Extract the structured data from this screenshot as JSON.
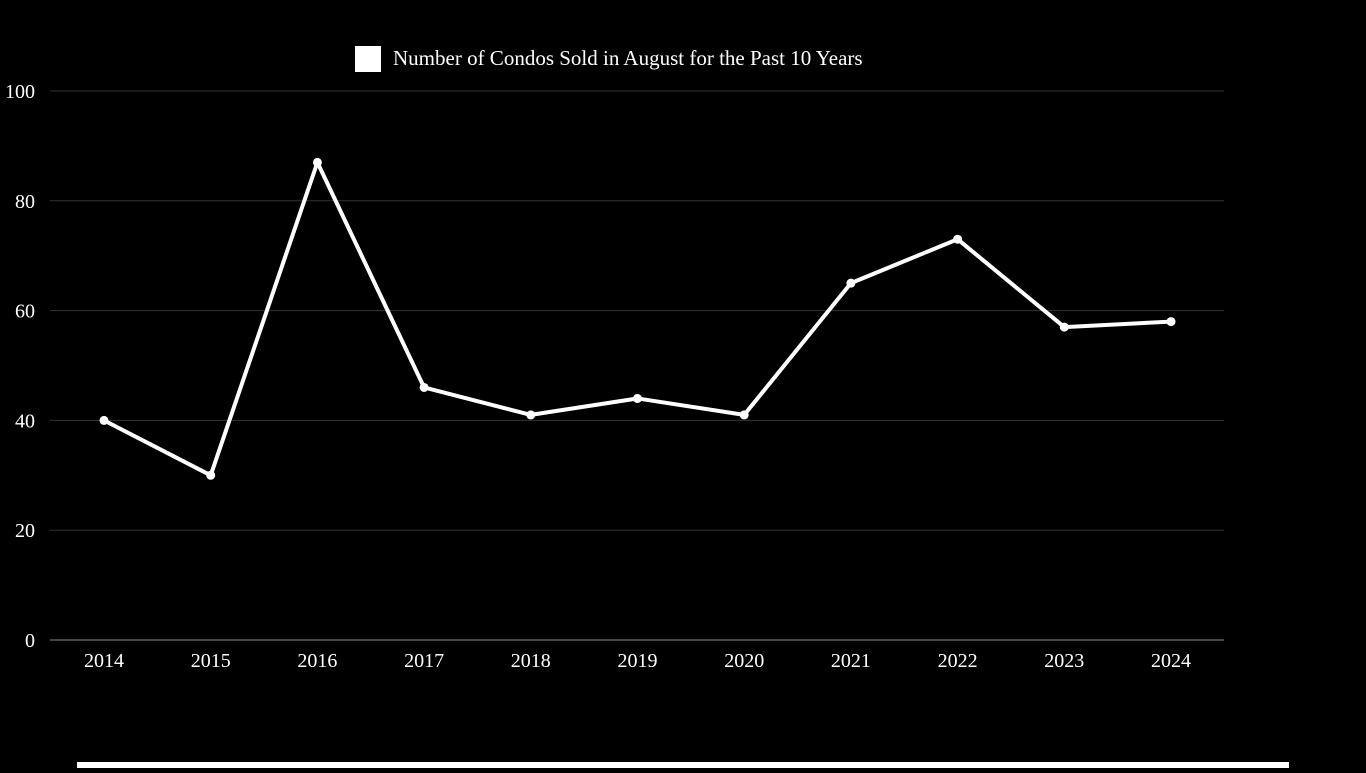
{
  "colors": {
    "background": "#000000",
    "series": "#ffffff",
    "gridline": "#333333",
    "axis": "#888888",
    "text": "#ffffff"
  },
  "chart_data": {
    "type": "line",
    "title": "",
    "xlabel": "",
    "ylabel": "",
    "x": [
      "2014",
      "2015",
      "2016",
      "2017",
      "2018",
      "2019",
      "2020",
      "2021",
      "2022",
      "2023",
      "2024"
    ],
    "series": [
      {
        "name": "Number of Condos Sold in August for the Past 10 Years",
        "values": [
          40,
          30,
          87,
          46,
          41,
          44,
          41,
          65,
          73,
          57,
          58
        ]
      }
    ],
    "ylim": [
      0,
      100
    ],
    "yticks": [
      0,
      20,
      40,
      60,
      80,
      100
    ],
    "grid": true,
    "legend": "top-center"
  }
}
